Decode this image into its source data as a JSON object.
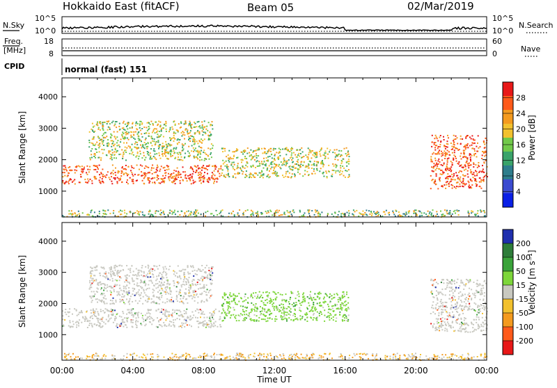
{
  "header": {
    "station": "Hokkaido East (fitACF)",
    "beam": "Beam 05",
    "date": "02/Mar/2019"
  },
  "status_panels": {
    "nsky_label": "N.Sky",
    "nsearch_label": "N.Search",
    "nsky_ticks": [
      "10^5",
      "10^0"
    ],
    "nsearch_ticks": [
      "10^5",
      "10^0"
    ],
    "freq_label_top": "Freq.",
    "freq_label_unit": "[MHz]",
    "freq_ticks": [
      "18",
      "8"
    ],
    "nave_label": "Nave",
    "nave_ticks": [
      "60",
      "0"
    ],
    "cpid_label": "CPID",
    "cpid_value": "normal (fast) 151"
  },
  "chart_data": [
    {
      "type": "heatmap",
      "name": "power",
      "ylabel": "Slant Range [km]",
      "xlabel": "",
      "x_ticks": [
        "00:00",
        "04:00",
        "08:00",
        "12:00",
        "16:00",
        "20:00",
        "00:00"
      ],
      "y_ticks": [
        1000,
        2000,
        3000,
        4000
      ],
      "ylim": [
        180,
        4600
      ],
      "xlim_hours": [
        0,
        24
      ],
      "colorbar_label": "Power [dB]",
      "colorbar_ticks": [
        4,
        8,
        12,
        16,
        20,
        24,
        28
      ],
      "colorbar_range": [
        0,
        32
      ],
      "colors": [
        "#0a1fe6",
        "#3b4bd0",
        "#2e7d8c",
        "#3aa36a",
        "#71c94a",
        "#f2c12e",
        "#f49a1e",
        "#ff5a1a",
        "#e81818"
      ],
      "regions": [
        {
          "t0": 0.0,
          "t1": 9.0,
          "r0": 1250,
          "r1": 1850,
          "level": "high"
        },
        {
          "t0": 1.5,
          "t1": 8.5,
          "r0": 2000,
          "r1": 3250,
          "level": "mid"
        },
        {
          "t0": 9.0,
          "t1": 16.2,
          "r0": 1450,
          "r1": 2400,
          "level": "mid"
        },
        {
          "t0": 20.8,
          "t1": 24.0,
          "r0": 1100,
          "r1": 2800,
          "level": "high"
        },
        {
          "t0": 0.0,
          "t1": 24.0,
          "r0": 200,
          "r1": 420,
          "level": "low"
        }
      ]
    },
    {
      "type": "heatmap",
      "name": "velocity",
      "ylabel": "Slant Range [km]",
      "xlabel": "Time UT",
      "x_ticks": [
        "00:00",
        "04:00",
        "08:00",
        "12:00",
        "16:00",
        "20:00",
        "00:00"
      ],
      "y_ticks": [
        1000,
        2000,
        3000,
        4000
      ],
      "ylim": [
        180,
        4600
      ],
      "xlim_hours": [
        0,
        24
      ],
      "colorbar_label": "Velocity [m s⁻¹]",
      "colorbar_ticks": [
        200,
        100,
        50,
        15,
        -15,
        -50,
        -100,
        -200
      ],
      "colors": [
        "#1f2fae",
        "#2e7d3a",
        "#3aa33a",
        "#7dd63a",
        "#c8c8c0",
        "#f2c12e",
        "#f49a1e",
        "#ff5a1a",
        "#e81818"
      ],
      "regions": [
        {
          "t0": 0.0,
          "t1": 9.0,
          "r0": 1250,
          "r1": 1850,
          "level": "zero"
        },
        {
          "t0": 1.5,
          "t1": 8.5,
          "r0": 2000,
          "r1": 3250,
          "level": "zero"
        },
        {
          "t0": 9.0,
          "t1": 16.2,
          "r0": 1450,
          "r1": 2400,
          "level": "pos"
        },
        {
          "t0": 20.8,
          "t1": 24.0,
          "r0": 1100,
          "r1": 2800,
          "level": "zero"
        },
        {
          "t0": 0.0,
          "t1": 24.0,
          "r0": 200,
          "r1": 420,
          "level": "neg"
        }
      ]
    }
  ]
}
